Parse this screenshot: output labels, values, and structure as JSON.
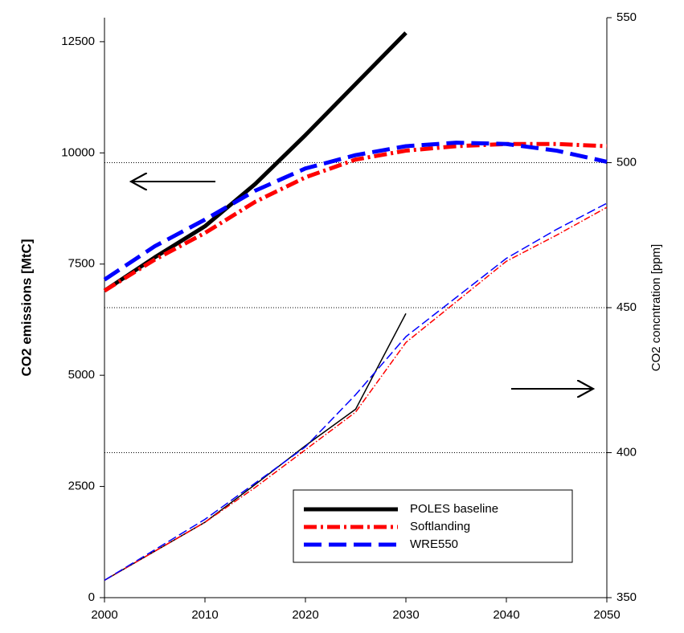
{
  "chart_data": {
    "type": "line",
    "ylabel": "CO2 emissions [MtC]",
    "y2label": "CO2 concntration [ppm]",
    "x": [
      2000,
      2005,
      2010,
      2015,
      2020,
      2025,
      2030,
      2035,
      2040,
      2045,
      2050
    ],
    "xlim": [
      2000,
      2050
    ],
    "xticks": [
      2000,
      2010,
      2020,
      2030,
      2040,
      2050
    ],
    "ylim": [
      0,
      13040
    ],
    "yticks": [
      0,
      2500,
      5000,
      7500,
      10000,
      12500
    ],
    "y2lim": [
      350,
      550
    ],
    "y2ticks": [
      350,
      400,
      450,
      500,
      550
    ],
    "grid": "y2",
    "series": [
      {
        "name": "POLES baseline",
        "color": "#000000",
        "values": [
          6900,
          7650,
          8350,
          9300,
          10400,
          11550,
          12700,
          null,
          null,
          null,
          null
        ]
      },
      {
        "name": "Softlanding",
        "color": "#ff0000",
        "values": [
          6900,
          7600,
          8200,
          8900,
          9450,
          9850,
          10050,
          10150,
          10200,
          10200,
          10150
        ]
      },
      {
        "name": "WRE550",
        "color": "#0000ff",
        "values": [
          7150,
          7900,
          8500,
          9150,
          9650,
          9950,
          10150,
          10230,
          10200,
          10050,
          9800
        ]
      },
      {
        "color": "#000000",
        "axis": "y2",
        "values": [
          356,
          366,
          376,
          389,
          402.4,
          415,
          448,
          null,
          null,
          null,
          null
        ]
      },
      {
        "color": "#ff0000",
        "axis": "y2",
        "values": [
          356,
          366,
          376,
          388,
          401,
          414,
          438,
          452,
          466,
          475,
          484.6
        ]
      },
      {
        "color": "#0000ff",
        "axis": "y2",
        "values": [
          356,
          366.5,
          377,
          389.5,
          402,
          420,
          440,
          453.5,
          467,
          477,
          486
        ]
      }
    ]
  }
}
